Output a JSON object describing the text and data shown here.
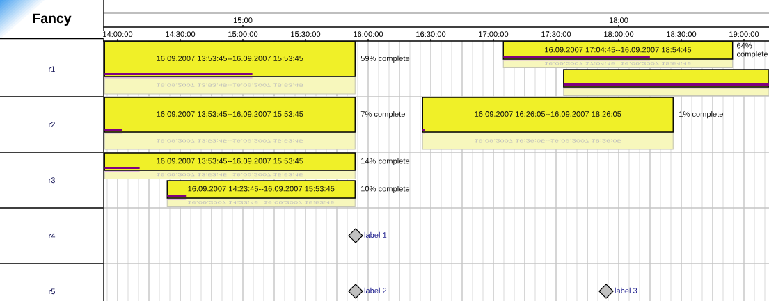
{
  "chart_data": {
    "type": "bar",
    "title": "Fancy",
    "orientation": "horizontal",
    "categories": [
      "r1",
      "r2",
      "r3",
      "r4",
      "r5"
    ],
    "xlim": [
      13.8889,
      19.2
    ],
    "xticks": [
      {
        "value": 13.9167,
        "label": null
      },
      {
        "value": 14,
        "label": "14:00:00"
      },
      {
        "value": 14.0833,
        "label": null
      },
      {
        "value": 14.1667,
        "label": null
      },
      {
        "value": 14.25,
        "label": null
      },
      {
        "value": 14.3333,
        "label": null
      },
      {
        "value": 14.4167,
        "label": null
      },
      {
        "value": 14.5,
        "label": "14:30:00"
      },
      {
        "value": 14.5833,
        "label": null
      },
      {
        "value": 14.6667,
        "label": null
      },
      {
        "value": 14.75,
        "label": null
      },
      {
        "value": 14.8333,
        "label": null
      },
      {
        "value": 14.9167,
        "label": null
      },
      {
        "value": 15,
        "label": "15:00:00"
      },
      {
        "value": 15.0833,
        "label": null
      },
      {
        "value": 15.1667,
        "label": null
      },
      {
        "value": 15.25,
        "label": null
      },
      {
        "value": 15.3333,
        "label": null
      },
      {
        "value": 15.4167,
        "label": null
      },
      {
        "value": 15.5,
        "label": "15:30:00"
      },
      {
        "value": 15.5833,
        "label": null
      },
      {
        "value": 15.6667,
        "label": null
      },
      {
        "value": 15.75,
        "label": null
      },
      {
        "value": 15.8333,
        "label": null
      },
      {
        "value": 15.9167,
        "label": null
      },
      {
        "value": 16,
        "label": "16:00:00"
      },
      {
        "value": 16.0833,
        "label": null
      },
      {
        "value": 16.1667,
        "label": null
      },
      {
        "value": 16.25,
        "label": null
      },
      {
        "value": 16.3333,
        "label": null
      },
      {
        "value": 16.4167,
        "label": null
      },
      {
        "value": 16.5,
        "label": "16:30:00"
      },
      {
        "value": 16.5833,
        "label": null
      },
      {
        "value": 16.6667,
        "label": null
      },
      {
        "value": 16.75,
        "label": null
      },
      {
        "value": 16.8333,
        "label": null
      },
      {
        "value": 16.9167,
        "label": null
      },
      {
        "value": 17,
        "label": "17:00:00"
      },
      {
        "value": 17.0833,
        "label": null
      },
      {
        "value": 17.1667,
        "label": null
      },
      {
        "value": 17.25,
        "label": null
      },
      {
        "value": 17.3333,
        "label": null
      },
      {
        "value": 17.4167,
        "label": null
      },
      {
        "value": 17.5,
        "label": "17:30:00"
      },
      {
        "value": 17.5833,
        "label": null
      },
      {
        "value": 17.6667,
        "label": null
      },
      {
        "value": 17.75,
        "label": null
      },
      {
        "value": 17.8333,
        "label": null
      },
      {
        "value": 17.9167,
        "label": null
      },
      {
        "value": 18,
        "label": "18:00:00"
      },
      {
        "value": 18.0833,
        "label": null
      },
      {
        "value": 18.1667,
        "label": null
      },
      {
        "value": 18.25,
        "label": null
      },
      {
        "value": 18.3333,
        "label": null
      },
      {
        "value": 18.4167,
        "label": null
      },
      {
        "value": 18.5,
        "label": "18:30:00"
      },
      {
        "value": 18.5833,
        "label": null
      },
      {
        "value": 18.6667,
        "label": null
      },
      {
        "value": 18.75,
        "label": null
      },
      {
        "value": 18.8333,
        "label": null
      },
      {
        "value": 18.9167,
        "label": null
      },
      {
        "value": 19,
        "label": "19:00:00"
      },
      {
        "value": 19.0833,
        "label": null
      },
      {
        "value": 19.1667,
        "label": null
      }
    ],
    "x2lim": [
      13.8889,
      19.2
    ],
    "x2ticks": [
      {
        "value": 15,
        "label": "15:00"
      },
      {
        "value": 18,
        "label": "18:00"
      }
    ],
    "grid": true,
    "series": [
      {
        "color": "#f0f028",
        "base": [
          17.0792,
          13.8958,
          13.8958,
          null,
          null
        ],
        "values": [
          1.83,
          2,
          2,
          null,
          null
        ]
      },
      {
        "color": "#f0f028",
        "base": [
          13.8958,
          16.4347,
          14.3958,
          null,
          null
        ],
        "values": [
          2,
          2,
          1.5,
          null,
          null
        ]
      },
      {
        "color": "#f0f028",
        "base": [
          17.56,
          null,
          null,
          null,
          null
        ],
        "values": [
          1.64,
          null,
          null,
          null,
          null
        ]
      },
      {
        "color": "#800080",
        "base": [
          17.0792,
          13.8958,
          13.8958,
          null,
          null
        ],
        "values": [
          1.17,
          0.14,
          0.28,
          null,
          null
        ]
      },
      {
        "color": "#800080",
        "base": [
          13.8958,
          16.4347,
          14.3958,
          null,
          null
        ],
        "values": [
          1.18,
          0.02,
          0.15,
          null,
          null
        ]
      },
      {
        "color": "#800080",
        "base": [
          17.56,
          null,
          null,
          null,
          null
        ],
        "values": [
          1.64,
          null,
          null,
          null,
          null
        ]
      },
      {
        "type": "scatter",
        "marker": "diamond",
        "color": "#c0c0c0",
        "values": [
          null,
          null,
          null,
          15.9,
          15.9
        ],
        "value_labels": [
          null,
          null,
          null,
          "label 1",
          "label 2"
        ]
      },
      {
        "type": "scatter",
        "marker": "diamond",
        "color": "#c0c0c0",
        "values": [
          null,
          null,
          null,
          null,
          17.9
        ],
        "value_labels": [
          null,
          null,
          null,
          null,
          "label 3"
        ]
      }
    ],
    "annotations": [
      "16.09.2007 17:04:45--16.09.2007 18:54:45",
      "16.09.2007 13:53:45--16.09.2007 15:53:45",
      "16.09.2007 13:53:45--16.09.2007 15:53:45",
      "16.09.2007 13:53:45--16.09.2007 15:53:45",
      "16.09.2007 16:26:05--16.09.2007 18:26:05",
      "16.09.2007 14:23:45--16.09.2007 15:53:45",
      {
        "text": "59% complete",
        "x": 15.8958,
        "y": "r1"
      },
      {
        "text": "64% complete",
        "x": 18.9125,
        "y": "r1"
      },
      {
        "text": "7% complete",
        "x": 15.8958,
        "y": "r2"
      },
      {
        "text": "1% complete",
        "x": 18.4347,
        "y": "r2"
      },
      {
        "text": "14% complete",
        "x": 15.8958,
        "y": "r3"
      },
      {
        "text": "10% complete",
        "x": 15.8958,
        "y": "r3"
      }
    ]
  }
}
